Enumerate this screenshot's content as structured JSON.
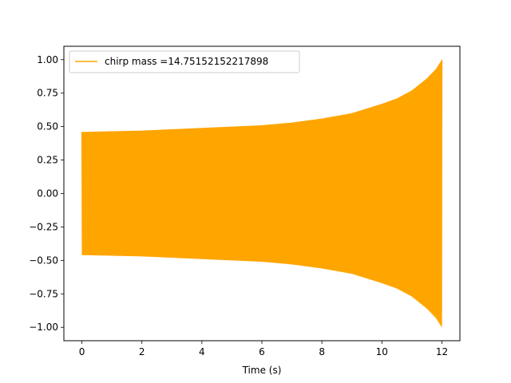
{
  "chart_data": {
    "type": "line",
    "title": "",
    "xlabel": "Time (s)",
    "ylabel": "",
    "xlim": [
      -0.6,
      12.6
    ],
    "ylim": [
      -1.1,
      1.1
    ],
    "xticks": [
      0,
      2,
      4,
      6,
      8,
      10,
      12
    ],
    "xtick_labels": [
      "0",
      "2",
      "4",
      "6",
      "8",
      "10",
      "12"
    ],
    "yticks": [
      -1.0,
      -0.75,
      -0.5,
      -0.25,
      0.0,
      0.25,
      0.5,
      0.75,
      1.0
    ],
    "ytick_labels": [
      "−1.00",
      "−0.75",
      "−0.50",
      "−0.25",
      "0.00",
      "0.25",
      "0.50",
      "0.75",
      "1.00"
    ],
    "grid": false,
    "legend": {
      "placement": "top-left"
    },
    "series": [
      {
        "name": "chirp mass =14.75152152217898",
        "color": "#FFA500",
        "signal": "chirp",
        "t_start": 0,
        "t_end": 12,
        "envelope": {
          "t": [
            0,
            2,
            4,
            6,
            7,
            8,
            9,
            10,
            10.5,
            11,
            11.5,
            11.8,
            12
          ],
          "amplitude": [
            0.46,
            0.47,
            0.49,
            0.51,
            0.53,
            0.56,
            0.6,
            0.67,
            0.71,
            0.77,
            0.86,
            0.93,
            1.0
          ]
        }
      }
    ]
  }
}
